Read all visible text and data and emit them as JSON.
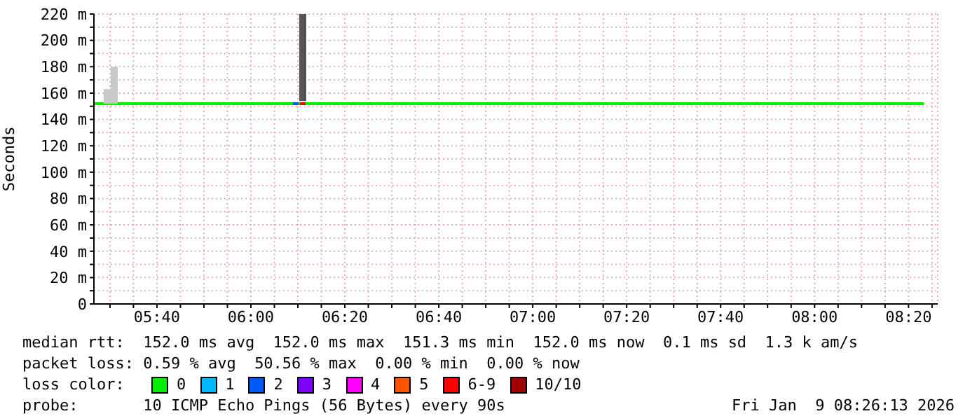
{
  "chart_data": {
    "type": "line",
    "ylabel": "Seconds",
    "legend_title": "loss color:",
    "legend": "bottom",
    "marker": "none",
    "grid": true,
    "xlim": [
      5.443,
      8.437
    ],
    "ylim": [
      0,
      220
    ],
    "xticks": [
      {
        "value": 5.5,
        "label": null
      },
      {
        "value": 5.5833,
        "label": null
      },
      {
        "value": 5.6667,
        "label": "05:40"
      },
      {
        "value": 5.75,
        "label": null
      },
      {
        "value": 5.8333,
        "label": null
      },
      {
        "value": 5.9167,
        "label": null
      },
      {
        "value": 6,
        "label": "06:00"
      },
      {
        "value": 6.0833,
        "label": null
      },
      {
        "value": 6.1667,
        "label": null
      },
      {
        "value": 6.25,
        "label": null
      },
      {
        "value": 6.3333,
        "label": "06:20"
      },
      {
        "value": 6.4167,
        "label": null
      },
      {
        "value": 6.5,
        "label": null
      },
      {
        "value": 6.5833,
        "label": null
      },
      {
        "value": 6.6667,
        "label": "06:40"
      },
      {
        "value": 6.75,
        "label": null
      },
      {
        "value": 6.8333,
        "label": null
      },
      {
        "value": 6.9167,
        "label": null
      },
      {
        "value": 7,
        "label": "07:00"
      },
      {
        "value": 7.0833,
        "label": null
      },
      {
        "value": 7.1667,
        "label": null
      },
      {
        "value": 7.25,
        "label": null
      },
      {
        "value": 7.3333,
        "label": "07:20"
      },
      {
        "value": 7.4167,
        "label": null
      },
      {
        "value": 7.5,
        "label": null
      },
      {
        "value": 7.5833,
        "label": null
      },
      {
        "value": 7.6667,
        "label": "07:40"
      },
      {
        "value": 7.75,
        "label": null
      },
      {
        "value": 7.8333,
        "label": null
      },
      {
        "value": 7.9167,
        "label": null
      },
      {
        "value": 8,
        "label": "08:00"
      },
      {
        "value": 8.0833,
        "label": null
      },
      {
        "value": 8.1667,
        "label": null
      },
      {
        "value": 8.25,
        "label": null
      },
      {
        "value": 8.3333,
        "label": "08:20"
      },
      {
        "value": 8.4167,
        "label": null
      }
    ],
    "yticks": [
      0,
      {
        "value": 10,
        "label": null
      },
      {
        "value": 20,
        "label": "20 m"
      },
      {
        "value": 30,
        "label": null
      },
      {
        "value": 40,
        "label": "40 m"
      },
      {
        "value": 50,
        "label": null
      },
      {
        "value": 60,
        "label": "60 m"
      },
      {
        "value": 70,
        "label": null
      },
      {
        "value": 80,
        "label": "80 m"
      },
      {
        "value": 90,
        "label": null
      },
      {
        "value": 100,
        "label": "100 m"
      },
      {
        "value": 110,
        "label": null
      },
      {
        "value": 120,
        "label": "120 m"
      },
      {
        "value": 130,
        "label": null
      },
      {
        "value": 140,
        "label": "140 m"
      },
      {
        "value": 150,
        "label": null
      },
      {
        "value": 160,
        "label": "160 m"
      },
      {
        "value": 170,
        "label": null
      },
      {
        "value": 180,
        "label": "180 m"
      },
      {
        "value": 190,
        "label": null
      },
      {
        "value": 200,
        "label": "200 m"
      },
      {
        "value": 210,
        "label": null
      },
      {
        "value": 220,
        "label": "220 m"
      }
    ],
    "series": [
      {
        "type": "bar",
        "x": [
          5.49,
          5.515,
          6.184
        ],
        "base": [
          152,
          152,
          154
        ],
        "values": [
          11,
          28,
          66
        ],
        "colors": [
          "#c8c8c8",
          "#c8c8c8",
          "#555555"
        ]
      },
      {
        "name": "0",
        "color": "#00ee00",
        "x": [
          5.443,
          8.388
        ],
        "values": [
          152,
          152
        ]
      },
      {
        "name": "1",
        "color": "#00b8ff"
      },
      {
        "name": "2",
        "color": "#0059ff",
        "x": [
          6.149,
          6.169
        ],
        "values": [
          152,
          152
        ]
      },
      {
        "name": "3",
        "color": "#7e00ff"
      },
      {
        "name": "4",
        "color": "#ff00ff"
      },
      {
        "name": "5",
        "color": "#ff5500"
      },
      {
        "name": "6-9",
        "color": "#ff0000",
        "x": [
          6.174,
          6.194
        ],
        "values": [
          152,
          152
        ]
      },
      {
        "name": "10/10",
        "color": "#a10000"
      }
    ],
    "annotations": [
      "median rtt:  152.0 ms avg  152.0 ms max  151.3 ms min  152.0 ms now  0.1 ms sd  1.3 k am/s",
      "packet loss: 0.59 % avg  50.56 % max  0.00 % min  0.00 % now",
      "probe:       10 ICMP Echo Pings (56 Bytes) every 90s",
      "Fri Jan  9 08:26:13 2026"
    ]
  }
}
